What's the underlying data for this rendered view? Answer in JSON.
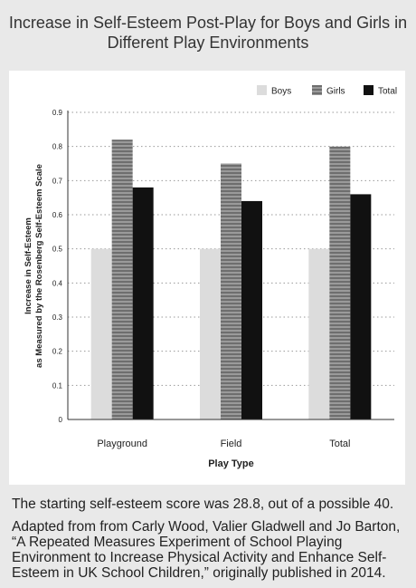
{
  "chart_data": {
    "type": "bar",
    "title_lines": [
      "Increase in Self-Esteem Post-Play for Boys and Girls in",
      "Different Play Environments"
    ],
    "xlabel": "Play Type",
    "ylabel_lines": [
      "Increase in Self-Esteem",
      "as Measured by the Rosenberg Self-Esteem Scale"
    ],
    "categories": [
      "Playground",
      "Field",
      "Total"
    ],
    "series": [
      {
        "name": "Boys",
        "values": [
          0.5,
          0.5,
          0.5
        ],
        "color": "#dcdcdc",
        "pattern": "solid"
      },
      {
        "name": "Girls",
        "values": [
          0.82,
          0.75,
          0.8
        ],
        "color": "#8a8a8a",
        "pattern": "hatched"
      },
      {
        "name": "Total",
        "values": [
          0.68,
          0.64,
          0.66
        ],
        "color": "#111111",
        "pattern": "solid"
      }
    ],
    "ylim": [
      0,
      0.9
    ],
    "yticks": [
      "0",
      "0.1",
      "0.2",
      "0.3",
      "0.4",
      "0.5",
      "0.6",
      "0.7",
      "0.8",
      "0.9"
    ],
    "grid": true,
    "legend_position": "top-right"
  },
  "notes": {
    "line1": "The starting self-esteem score was 28.8, out of a possible 40.",
    "line2": "Adapted from from Carly Wood, Valier Gladwell and Jo Barton, “A Repeated Measures Experiment of School Playing Environment to Increase Physical Activity and Enhance Self-Esteem in UK School Children,” originally published in 2014."
  }
}
